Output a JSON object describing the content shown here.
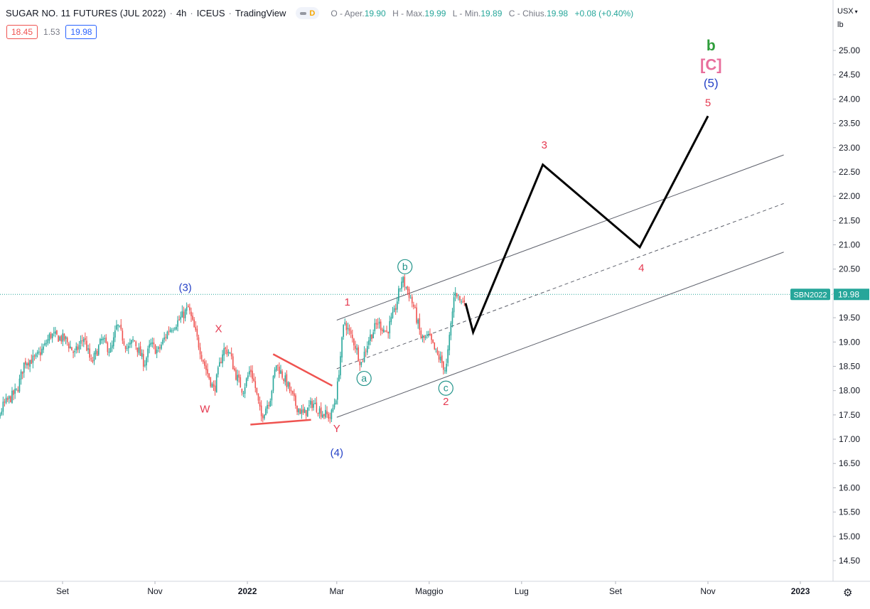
{
  "header": {
    "symbol": "SUGAR NO. 11 FUTURES (JUL 2022)",
    "interval": "4h",
    "exchange": "ICEUS",
    "source": "TradingView",
    "badge": "D",
    "ohlc": [
      {
        "label": "O - Aper.",
        "value": "19.90"
      },
      {
        "label": "H - Max.",
        "value": "19.99"
      },
      {
        "label": "L - Min.",
        "value": "19.89"
      },
      {
        "label": "C - Chius.",
        "value": "19.98"
      }
    ],
    "change": "+0.08 (+0.40%)"
  },
  "quote": {
    "bid": "18.45",
    "spread": "1.53",
    "ask": "19.98"
  },
  "currency": {
    "code": "USX",
    "unit": "lb"
  },
  "colors": {
    "up": "#26a69a",
    "down": "#ef5350",
    "wave_red": "#e53950",
    "wave_blue": "#2642c7",
    "wave_green": "#2e9d3a",
    "wave_pink": "#e86e9c",
    "circle_teal": "#22948a"
  },
  "chart_data": {
    "type": "line",
    "title": "SUGAR NO. 11 FUTURES (JUL 2022) 4h ICEUS",
    "ylim": [
      14.05,
      25.6
    ],
    "y_ticks": [
      "14.50",
      "15.00",
      "15.50",
      "16.00",
      "16.50",
      "17.00",
      "17.50",
      "18.00",
      "18.50",
      "19.00",
      "19.50",
      "20.00",
      "20.50",
      "21.00",
      "21.50",
      "22.00",
      "22.50",
      "23.00",
      "23.50",
      "24.00",
      "24.50",
      "25.00"
    ],
    "x_ticks": [
      {
        "x": "2021-09-01",
        "label": "Set"
      },
      {
        "x": "2021-11-01",
        "label": "Nov"
      },
      {
        "x": "2022-01-01",
        "label": "2022"
      },
      {
        "x": "2022-03-01",
        "label": "Mar"
      },
      {
        "x": "2022-05-01",
        "label": "Maggio"
      },
      {
        "x": "2022-07-01",
        "label": "Lug"
      },
      {
        "x": "2022-09-01",
        "label": "Set"
      },
      {
        "x": "2022-11-01",
        "label": "Nov"
      },
      {
        "x": "2023-01-01",
        "label": "2023"
      }
    ],
    "price_path": [
      {
        "x": "2021-07-08",
        "y": 16.55
      },
      {
        "x": "2021-07-12",
        "y": 17.3
      },
      {
        "x": "2021-07-17",
        "y": 17.15
      },
      {
        "x": "2021-07-24",
        "y": 17.7
      },
      {
        "x": "2021-08-02",
        "y": 18.0
      },
      {
        "x": "2021-08-07",
        "y": 18.6
      },
      {
        "x": "2021-08-14",
        "y": 18.65
      },
      {
        "x": "2021-08-20",
        "y": 18.9
      },
      {
        "x": "2021-08-24",
        "y": 19.15
      },
      {
        "x": "2021-09-03",
        "y": 19.05
      },
      {
        "x": "2021-09-09",
        "y": 18.75
      },
      {
        "x": "2021-09-15",
        "y": 19.1
      },
      {
        "x": "2021-09-20",
        "y": 18.55
      },
      {
        "x": "2021-09-27",
        "y": 19.05
      },
      {
        "x": "2021-10-03",
        "y": 18.8
      },
      {
        "x": "2021-10-07",
        "y": 19.35
      },
      {
        "x": "2021-10-14",
        "y": 18.85
      },
      {
        "x": "2021-10-18",
        "y": 19.05
      },
      {
        "x": "2021-10-25",
        "y": 18.55
      },
      {
        "x": "2021-10-29",
        "y": 18.95
      },
      {
        "x": "2021-11-03",
        "y": 18.8
      },
      {
        "x": "2021-11-10",
        "y": 19.25
      },
      {
        "x": "2021-11-17",
        "y": 19.45
      },
      {
        "x": "2021-11-23",
        "y": 19.7
      },
      {
        "x": "2021-11-28",
        "y": 19.15
      },
      {
        "x": "2021-12-04",
        "y": 18.5
      },
      {
        "x": "2021-12-10",
        "y": 18.0
      },
      {
        "x": "2021-12-16",
        "y": 18.85
      },
      {
        "x": "2021-12-20",
        "y": 18.8
      },
      {
        "x": "2021-12-24",
        "y": 18.35
      },
      {
        "x": "2021-12-29",
        "y": 18.0
      },
      {
        "x": "2022-01-03",
        "y": 18.45
      },
      {
        "x": "2022-01-06",
        "y": 18.1
      },
      {
        "x": "2022-01-10",
        "y": 17.45
      },
      {
        "x": "2022-01-16",
        "y": 17.85
      },
      {
        "x": "2022-01-20",
        "y": 18.55
      },
      {
        "x": "2022-01-27",
        "y": 18.15
      },
      {
        "x": "2022-02-02",
        "y": 17.7
      },
      {
        "x": "2022-02-07",
        "y": 17.5
      },
      {
        "x": "2022-02-13",
        "y": 17.75
      },
      {
        "x": "2022-02-19",
        "y": 17.55
      },
      {
        "x": "2022-02-25",
        "y": 17.45
      },
      {
        "x": "2022-03-01",
        "y": 17.95
      },
      {
        "x": "2022-03-03",
        "y": 18.6
      },
      {
        "x": "2022-03-06",
        "y": 19.45
      },
      {
        "x": "2022-03-09",
        "y": 19.2
      },
      {
        "x": "2022-03-13",
        "y": 18.95
      },
      {
        "x": "2022-03-17",
        "y": 18.55
      },
      {
        "x": "2022-03-22",
        "y": 19.05
      },
      {
        "x": "2022-03-28",
        "y": 19.4
      },
      {
        "x": "2022-04-03",
        "y": 19.2
      },
      {
        "x": "2022-04-08",
        "y": 19.6
      },
      {
        "x": "2022-04-13",
        "y": 20.3
      },
      {
        "x": "2022-04-17",
        "y": 20.05
      },
      {
        "x": "2022-04-21",
        "y": 19.7
      },
      {
        "x": "2022-04-26",
        "y": 19.05
      },
      {
        "x": "2022-05-01",
        "y": 19.1
      },
      {
        "x": "2022-05-05",
        "y": 18.8
      },
      {
        "x": "2022-05-09",
        "y": 18.6
      },
      {
        "x": "2022-05-12",
        "y": 18.4
      },
      {
        "x": "2022-05-15",
        "y": 19.25
      },
      {
        "x": "2022-05-18",
        "y": 20.1
      },
      {
        "x": "2022-05-22",
        "y": 19.8
      },
      {
        "x": "2022-05-25",
        "y": 19.98
      }
    ],
    "projection": [
      {
        "x": "2022-05-25",
        "y": 19.8
      },
      {
        "x": "2022-05-30",
        "y": 19.2
      },
      {
        "x": "2022-07-15",
        "y": 22.65
      },
      {
        "x": "2022-09-17",
        "y": 20.95
      },
      {
        "x": "2022-11-01",
        "y": 23.65
      }
    ],
    "channel": {
      "start": "2022-03-01",
      "end": "2022-12-21",
      "upper": [
        19.45,
        22.85
      ],
      "middle": [
        18.45,
        21.85
      ],
      "lower": [
        17.45,
        20.85
      ],
      "upper_start": "2022-03-01",
      "middle_start": "2022-03-01"
    },
    "triangle": {
      "upper": [
        {
          "x": "2022-01-18",
          "y": 18.75
        },
        {
          "x": "2022-02-26",
          "y": 18.1
        }
      ],
      "lower": [
        {
          "x": "2022-01-03",
          "y": 17.3
        },
        {
          "x": "2022-02-12",
          "y": 17.4
        }
      ]
    },
    "last_price": {
      "value": 19.98,
      "label": "SBN2022",
      "price_label": "19.98"
    },
    "wave_labels": [
      {
        "text": "(3)",
        "x": "2021-11-21",
        "y": 20.05,
        "color": "wave_blue",
        "size": 15
      },
      {
        "text": "X",
        "x": "2021-12-13",
        "y": 19.2,
        "color": "wave_red",
        "size": 15
      },
      {
        "text": "W",
        "x": "2021-12-04",
        "y": 17.55,
        "color": "wave_red",
        "size": 15
      },
      {
        "text": "Y",
        "x": "2022-02-29",
        "y": 17.15,
        "color": "wave_red",
        "size": 15
      },
      {
        "text": "(4)",
        "x": "2022-02-29",
        "y": 16.65,
        "color": "wave_blue",
        "size": 15
      },
      {
        "text": "1",
        "x": "2022-03-08",
        "y": 19.75,
        "color": "wave_red",
        "size": 15
      },
      {
        "text": "2",
        "x": "2022-05-12",
        "y": 17.7,
        "color": "wave_red",
        "size": 15
      },
      {
        "text": "3",
        "x": "2022-07-16",
        "y": 22.98,
        "color": "wave_red",
        "size": 15
      },
      {
        "text": "4",
        "x": "2022-09-18",
        "y": 20.45,
        "color": "wave_red",
        "size": 15
      },
      {
        "text": "5",
        "x": "2022-11-01",
        "y": 23.85,
        "color": "wave_red",
        "size": 15
      },
      {
        "text": "(5)",
        "x": "2022-11-03",
        "y": 24.25,
        "color": "wave_blue",
        "size": 17
      },
      {
        "text": "[C]",
        "x": "2022-11-03",
        "y": 24.6,
        "color": "wave_pink",
        "size": 22
      },
      {
        "text": "b",
        "x": "2022-11-03",
        "y": 25.0,
        "color": "wave_green",
        "size": 21
      }
    ],
    "circle_labels": [
      {
        "text": "a",
        "x": "2022-03-19",
        "y": 18.25
      },
      {
        "text": "b",
        "x": "2022-04-15",
        "y": 20.55
      },
      {
        "text": "c",
        "x": "2022-05-12",
        "y": 18.05
      }
    ]
  }
}
